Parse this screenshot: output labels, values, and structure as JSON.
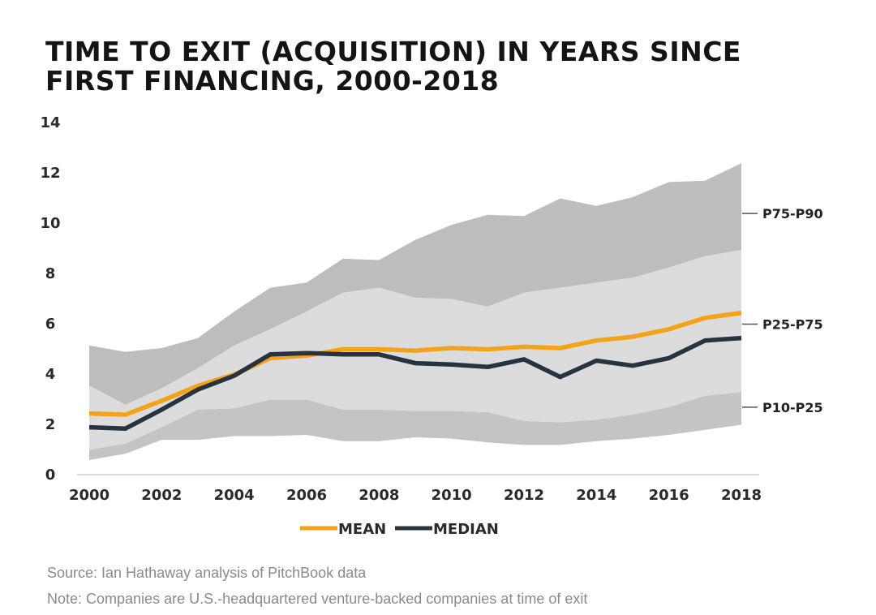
{
  "chart_data": {
    "type": "area",
    "title_lines": [
      "TIME TO EXIT (ACQUISITION) IN YEARS SINCE",
      "FIRST FINANCING, 2000-2018"
    ],
    "x": [
      2000,
      2001,
      2002,
      2003,
      2004,
      2005,
      2006,
      2007,
      2008,
      2009,
      2010,
      2011,
      2012,
      2013,
      2014,
      2015,
      2016,
      2017,
      2018
    ],
    "x_ticks": [
      "2000",
      "2002",
      "2004",
      "2006",
      "2008",
      "2010",
      "2012",
      "2014",
      "2016",
      "2018"
    ],
    "y_ticks": [
      "0",
      "2",
      "4",
      "6",
      "8",
      "10",
      "12",
      "14"
    ],
    "ylim": [
      0,
      14
    ],
    "xlim": [
      2000,
      2018
    ],
    "grid": false,
    "bands": [
      {
        "name": "P75-P90",
        "color": "#bdbdbd",
        "lower": [
          3.5,
          2.75,
          3.4,
          4.2,
          5.1,
          5.75,
          6.45,
          7.2,
          7.4,
          7.0,
          6.95,
          6.65,
          7.2,
          7.4,
          7.6,
          7.8,
          8.2,
          8.65,
          8.9
        ],
        "upper": [
          5.1,
          4.85,
          5.0,
          5.4,
          6.45,
          7.4,
          7.6,
          8.55,
          8.5,
          9.3,
          9.9,
          10.3,
          10.25,
          10.95,
          10.65,
          11.0,
          11.6,
          11.65,
          12.35
        ]
      },
      {
        "name": "P25-P75",
        "color": "#dcdcdc",
        "lower": [
          0.95,
          1.2,
          1.85,
          2.55,
          2.6,
          2.95,
          2.95,
          2.55,
          2.55,
          2.5,
          2.5,
          2.45,
          2.1,
          2.05,
          2.15,
          2.35,
          2.65,
          3.1,
          3.25
        ],
        "upper": [
          3.5,
          2.75,
          3.4,
          4.2,
          5.1,
          5.75,
          6.45,
          7.2,
          7.4,
          7.0,
          6.95,
          6.65,
          7.2,
          7.4,
          7.6,
          7.8,
          8.2,
          8.65,
          8.9
        ]
      },
      {
        "name": "P10-P25",
        "color": "#c4c4c4",
        "lower": [
          0.55,
          0.8,
          1.35,
          1.35,
          1.5,
          1.5,
          1.55,
          1.3,
          1.3,
          1.45,
          1.4,
          1.25,
          1.15,
          1.15,
          1.3,
          1.4,
          1.55,
          1.75,
          1.95
        ],
        "upper": [
          0.95,
          1.2,
          1.85,
          2.55,
          2.6,
          2.95,
          2.95,
          2.55,
          2.55,
          2.5,
          2.5,
          2.45,
          2.1,
          2.05,
          2.15,
          2.35,
          2.65,
          3.1,
          3.25
        ]
      }
    ],
    "band_labels": [
      {
        "text": "P75-P90",
        "y": 10.35
      },
      {
        "text": "P25-P75",
        "y": 5.95
      },
      {
        "text": "P10-P25",
        "y": 2.65
      }
    ],
    "series": [
      {
        "name": "MEAN",
        "color": "#f5a21b",
        "values": [
          2.4,
          2.35,
          2.9,
          3.5,
          3.95,
          4.6,
          4.7,
          4.95,
          4.95,
          4.9,
          5.0,
          4.95,
          5.05,
          5.0,
          5.3,
          5.45,
          5.75,
          6.2,
          6.4
        ]
      },
      {
        "name": "MEDIAN",
        "color": "#26343f",
        "values": [
          1.85,
          1.8,
          2.55,
          3.35,
          3.9,
          4.75,
          4.8,
          4.75,
          4.75,
          4.4,
          4.35,
          4.25,
          4.55,
          3.85,
          4.5,
          4.3,
          4.6,
          5.3,
          5.4
        ]
      }
    ],
    "legend_placement": "bottom-center"
  },
  "notes": {
    "source": "Source: Ian Hathaway analysis of PitchBook data",
    "note": "Note: Companies are U.S.-headquartered venture-backed companies at time of exit"
  }
}
